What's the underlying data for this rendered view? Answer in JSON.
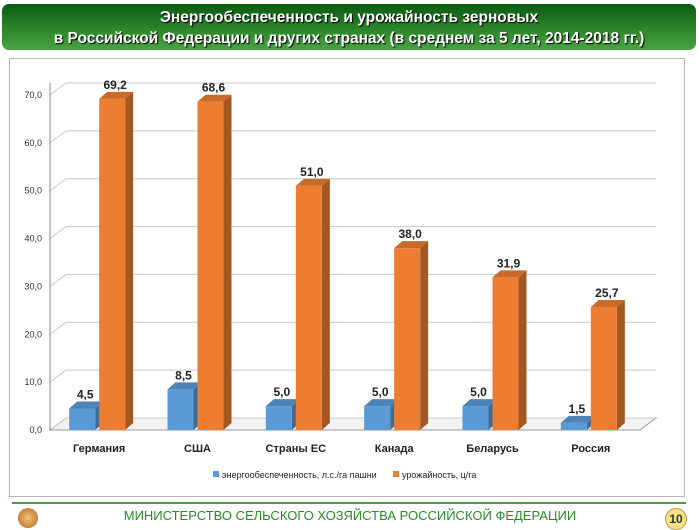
{
  "header": {
    "line1": "Энергообеспеченность и урожайность зерновых",
    "line2": "в Российской Федерации и других странах (в среднем за 5 лет, 2014-2018 гг.)"
  },
  "footer": {
    "ministry": "МИНИСТЕРСТВО СЕЛЬСКОГО ХОЗЯЙСТВА РОССИЙСКОЙ ФЕДЕРАЦИИ",
    "page": "10"
  },
  "chart_data": {
    "type": "bar",
    "categories": [
      "Германия",
      "США",
      "Страны ЕС",
      "Канада",
      "Беларусь",
      "Россия"
    ],
    "series": [
      {
        "name": "энергообеспеченность, л.с./га пашни",
        "color": "#5b9bd5",
        "values": [
          4.5,
          8.5,
          5.0,
          5.0,
          5.0,
          1.5
        ],
        "labels": [
          "4,5",
          "8,5",
          "5,0",
          "5,0",
          "5,0",
          "1,5"
        ]
      },
      {
        "name": "урожайность, ц/га",
        "color": "#ed7d31",
        "values": [
          69.2,
          68.6,
          51.0,
          38.0,
          31.9,
          25.7
        ],
        "labels": [
          "69,2",
          "68,6",
          "51,0",
          "38,0",
          "31,9",
          "25,7"
        ]
      }
    ],
    "yticks": [
      "0,0",
      "10,0",
      "20,0",
      "30,0",
      "40,0",
      "50,0",
      "60,0",
      "70,0"
    ],
    "ylim": [
      0,
      70
    ],
    "grid": true,
    "legend": "bottom"
  }
}
